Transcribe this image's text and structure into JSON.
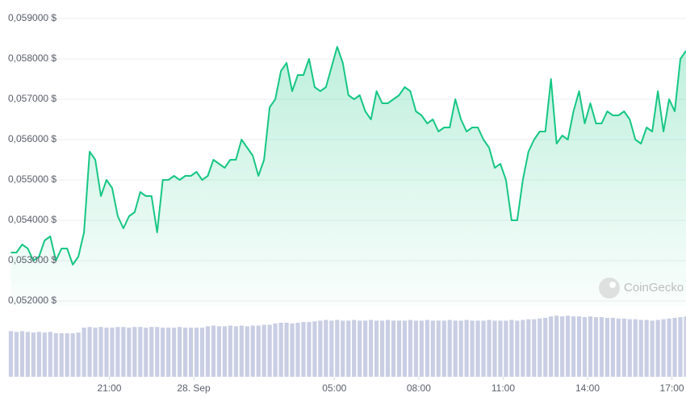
{
  "chart_data": {
    "type": "line",
    "watermark": "CoinGecko",
    "xlim": [
      17.4,
      41.5
    ],
    "xticks": [
      {
        "value": 21,
        "label": "21:00"
      },
      {
        "value": 24,
        "label": "28. Sep"
      },
      {
        "value": 29,
        "label": "05:00"
      },
      {
        "value": 32,
        "label": "08:00"
      },
      {
        "value": 35,
        "label": "11:00"
      },
      {
        "value": 38,
        "label": "14:00"
      },
      {
        "value": 41,
        "label": "17:00"
      }
    ],
    "ylim": [
      0.052,
      0.059
    ],
    "yticks": [
      {
        "value": 0.052,
        "label": "0,052000 $"
      },
      {
        "value": 0.053,
        "label": "0,053000 $"
      },
      {
        "value": 0.054,
        "label": "0,054000 $"
      },
      {
        "value": 0.055,
        "label": "0,055000 $"
      },
      {
        "value": 0.056,
        "label": "0,056000 $"
      },
      {
        "value": 0.057,
        "label": "0,057000 $"
      },
      {
        "value": 0.058,
        "label": "0,058000 $"
      },
      {
        "value": 0.059,
        "label": "0,059000 $"
      }
    ],
    "y2lim": [
      0,
      100
    ],
    "grid": true,
    "x": [
      17.5,
      17.7,
      17.9,
      18.1,
      18.3,
      18.5,
      18.7,
      18.9,
      19.1,
      19.3,
      19.5,
      19.7,
      19.9,
      20.1,
      20.3,
      20.5,
      20.7,
      20.9,
      21.1,
      21.3,
      21.5,
      21.7,
      21.9,
      22.1,
      22.3,
      22.5,
      22.7,
      22.9,
      23.1,
      23.3,
      23.5,
      23.7,
      23.9,
      24.1,
      24.3,
      24.5,
      24.7,
      24.9,
      25.1,
      25.3,
      25.5,
      25.7,
      25.9,
      26.1,
      26.3,
      26.5,
      26.7,
      26.9,
      27.1,
      27.3,
      27.5,
      27.7,
      27.9,
      28.1,
      28.3,
      28.5,
      28.7,
      28.9,
      29.1,
      29.3,
      29.5,
      29.7,
      29.9,
      30.1,
      30.3,
      30.5,
      30.7,
      30.9,
      31.1,
      31.3,
      31.5,
      31.7,
      31.9,
      32.1,
      32.3,
      32.5,
      32.7,
      32.9,
      33.1,
      33.3,
      33.5,
      33.7,
      33.9,
      34.1,
      34.3,
      34.5,
      34.7,
      34.9,
      35.1,
      35.3,
      35.5,
      35.7,
      35.9,
      36.1,
      36.3,
      36.5,
      36.7,
      36.9,
      37.1,
      37.3,
      37.5,
      37.7,
      37.9,
      38.1,
      38.3,
      38.5,
      38.7,
      38.9,
      39.1,
      39.3,
      39.5,
      39.7,
      39.9,
      40.1,
      40.3,
      40.5,
      40.7,
      40.9,
      41.1,
      41.3,
      41.5
    ],
    "series": [
      {
        "type": "line",
        "color": "#16c784",
        "values": [
          0.0532,
          0.0532,
          0.0534,
          0.0533,
          0.053,
          0.0531,
          0.0535,
          0.0536,
          0.053,
          0.0533,
          0.0533,
          0.0529,
          0.0531,
          0.0537,
          0.0557,
          0.0555,
          0.0546,
          0.055,
          0.0548,
          0.0541,
          0.0538,
          0.0541,
          0.0542,
          0.0547,
          0.0546,
          0.0546,
          0.0537,
          0.055,
          0.055,
          0.0551,
          0.055,
          0.0551,
          0.0551,
          0.0552,
          0.055,
          0.0551,
          0.0555,
          0.0554,
          0.0553,
          0.0555,
          0.0555,
          0.056,
          0.0558,
          0.0556,
          0.0551,
          0.0555,
          0.0568,
          0.057,
          0.0577,
          0.0579,
          0.0572,
          0.0576,
          0.0576,
          0.058,
          0.0573,
          0.0572,
          0.0573,
          0.0578,
          0.0583,
          0.0579,
          0.0571,
          0.057,
          0.0571,
          0.0567,
          0.0565,
          0.0572,
          0.0569,
          0.0569,
          0.057,
          0.0571,
          0.0573,
          0.0572,
          0.0567,
          0.0566,
          0.0564,
          0.0565,
          0.0562,
          0.0563,
          0.0563,
          0.057,
          0.0565,
          0.0562,
          0.0563,
          0.0563,
          0.056,
          0.0558,
          0.0553,
          0.0554,
          0.055,
          0.054,
          0.054,
          0.055,
          0.0557,
          0.056,
          0.0562,
          0.0562,
          0.0575,
          0.0559,
          0.0561,
          0.056,
          0.0567,
          0.0572,
          0.0564,
          0.0569,
          0.0564,
          0.0564,
          0.0567,
          0.0566,
          0.0566,
          0.0567,
          0.0565,
          0.056,
          0.0559,
          0.0563,
          0.0562,
          0.0572,
          0.0562,
          0.057,
          0.0567,
          0.058,
          0.0582
        ]
      },
      {
        "type": "bar",
        "axis": "y2",
        "color": "#c9cee4",
        "values": [
          65,
          64,
          65,
          64,
          63,
          64,
          63,
          64,
          62,
          62,
          62,
          62,
          63,
          70,
          71,
          70,
          71,
          70,
          70,
          71,
          71,
          70,
          71,
          71,
          70,
          71,
          71,
          70,
          70,
          70,
          71,
          70,
          70,
          70,
          70,
          72,
          73,
          72,
          72,
          73,
          72,
          73,
          72,
          73,
          73,
          74,
          74,
          76,
          77,
          77,
          76,
          77,
          78,
          78,
          79,
          80,
          81,
          80,
          81,
          80,
          80,
          81,
          80,
          80,
          81,
          80,
          80,
          81,
          80,
          80,
          80,
          81,
          80,
          80,
          81,
          80,
          80,
          80,
          81,
          80,
          80,
          81,
          80,
          80,
          80,
          81,
          80,
          80,
          80,
          81,
          80,
          81,
          82,
          82,
          83,
          84,
          86,
          87,
          86,
          87,
          86,
          86,
          85,
          86,
          85,
          85,
          84,
          84,
          83,
          83,
          82,
          82,
          81,
          81,
          80,
          81,
          82,
          83,
          84,
          85,
          86
        ]
      }
    ]
  }
}
